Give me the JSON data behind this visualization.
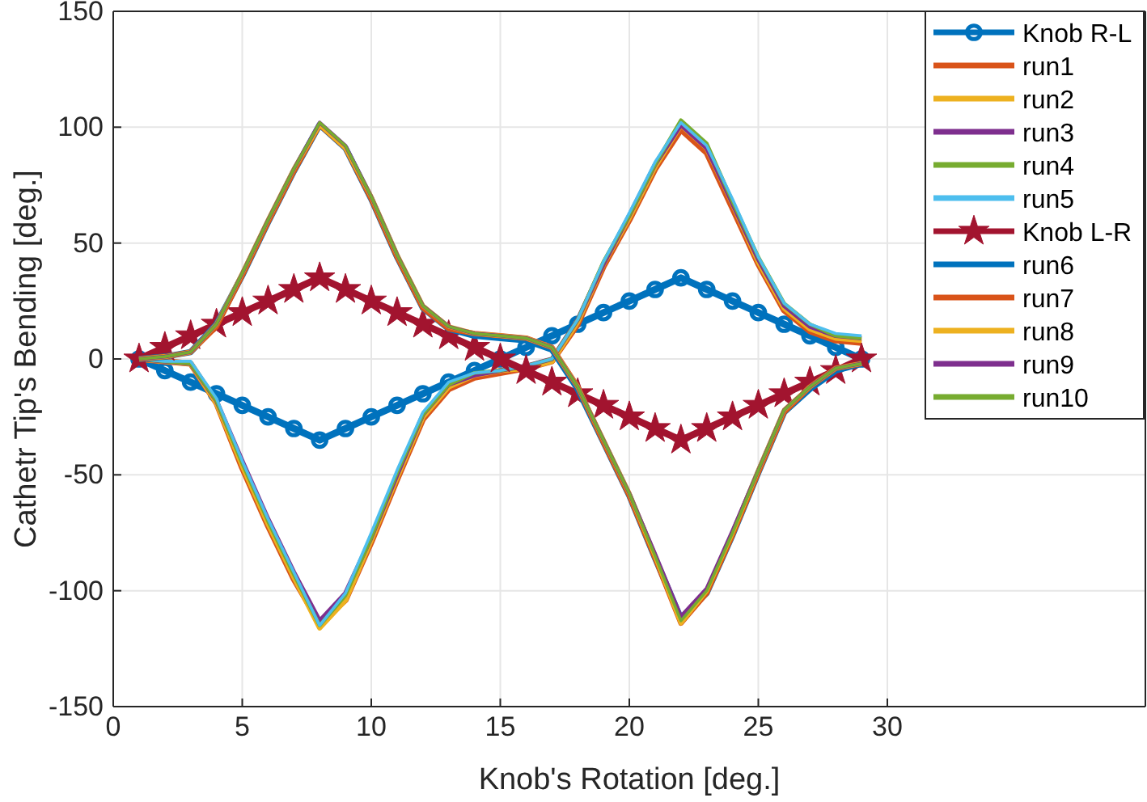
{
  "chart_data": {
    "type": "line",
    "xlabel": "Knob's Rotation [deg.]",
    "ylabel": "Cathetr Tip's Bending [deg.]",
    "x": [
      1,
      2,
      3,
      4,
      5,
      6,
      7,
      8,
      9,
      10,
      11,
      12,
      13,
      14,
      15,
      16,
      17,
      18,
      19,
      20,
      21,
      22,
      23,
      24,
      25,
      26,
      27,
      28,
      29
    ],
    "xlim": [
      0,
      40
    ],
    "xticks": [
      0,
      5,
      10,
      15,
      20,
      25,
      30
    ],
    "ylim": [
      -150,
      150
    ],
    "yticks": [
      -150,
      -100,
      -50,
      0,
      50,
      100,
      150
    ],
    "grid": true,
    "legend": "top right",
    "line_style": "solid",
    "series": [
      {
        "name": "Knob R-L",
        "color": "#0072bd",
        "marker": "circle",
        "values": [
          0,
          -5,
          -10,
          -15,
          -20,
          -25,
          -30,
          -35,
          -30,
          -25,
          -20,
          -15,
          -10,
          -5,
          0,
          5,
          10,
          15,
          20,
          25,
          30,
          35,
          30,
          25,
          20,
          15,
          10,
          5,
          0
        ]
      },
      {
        "name": "run1",
        "color": "#d95319",
        "marker": "none",
        "values": [
          0,
          -1,
          -2,
          -19,
          -47,
          -72,
          -95,
          -114,
          -104,
          -79,
          -52,
          -26,
          -13,
          -8,
          -6,
          -4,
          -1,
          15,
          40,
          60,
          82,
          99,
          89,
          65,
          41,
          21,
          12,
          8,
          7
        ]
      },
      {
        "name": "run2",
        "color": "#edb120",
        "marker": "none",
        "values": [
          0,
          -1,
          -2,
          -19,
          -46,
          -71,
          -94,
          -116,
          -104,
          -78,
          -51,
          -25,
          -12,
          -7,
          -5,
          -4,
          -1,
          16,
          41,
          61,
          83,
          101,
          91,
          67,
          42,
          22,
          13,
          9,
          8
        ]
      },
      {
        "name": "run3",
        "color": "#7e2f8e",
        "marker": "none",
        "values": [
          0,
          -1,
          -2,
          -18,
          -44,
          -69,
          -92,
          -113,
          -101,
          -77,
          -50,
          -24,
          -11,
          -7,
          -5,
          -3,
          0,
          17,
          41,
          62,
          84,
          101,
          91,
          67,
          43,
          23,
          14,
          10,
          9
        ]
      },
      {
        "name": "run4",
        "color": "#77ac30",
        "marker": "none",
        "values": [
          0,
          -1,
          -2,
          -18,
          -45,
          -70,
          -93,
          -115,
          -102,
          -77,
          -49,
          -24,
          -11,
          -6,
          -5,
          -3,
          0,
          17,
          42,
          62,
          84,
          103,
          93,
          68,
          44,
          24,
          15,
          10,
          9
        ]
      },
      {
        "name": "run5",
        "color": "#4dbeee",
        "marker": "none",
        "values": [
          0,
          -1,
          -1,
          -17,
          -44,
          -69,
          -92,
          -115,
          -101,
          -75,
          -48,
          -23,
          -10,
          -6,
          -5,
          -3,
          0,
          17,
          42,
          63,
          85,
          102,
          92,
          69,
          44,
          24,
          15,
          11,
          10
        ]
      },
      {
        "name": "Knob L-R",
        "color": "#a2142f",
        "marker": "star",
        "values": [
          0,
          5,
          10,
          15,
          20,
          25,
          30,
          35,
          30,
          25,
          20,
          15,
          10,
          5,
          0,
          -5,
          -10,
          -15,
          -20,
          -25,
          -30,
          -35,
          -30,
          -25,
          -20,
          -15,
          -10,
          -5,
          0
        ]
      },
      {
        "name": "run6",
        "color": "#0072bd",
        "marker": "none",
        "values": [
          0,
          1,
          3,
          15,
          36,
          59,
          81,
          101,
          91,
          69,
          44,
          22,
          13,
          10,
          9,
          8,
          4,
          -13,
          -36,
          -59,
          -86,
          -112,
          -101,
          -76,
          -49,
          -23,
          -13,
          -5,
          -2
        ]
      },
      {
        "name": "run7",
        "color": "#d95319",
        "marker": "none",
        "values": [
          0,
          1,
          3,
          14,
          36,
          59,
          81,
          101,
          91,
          69,
          44,
          22,
          13,
          11,
          10,
          9,
          5,
          -12,
          -36,
          -59,
          -86,
          -114,
          -101,
          -76,
          -49,
          -23,
          -12,
          -4,
          -2
        ]
      },
      {
        "name": "run8",
        "color": "#edb120",
        "marker": "none",
        "values": [
          0,
          1,
          3,
          15,
          37,
          60,
          82,
          101,
          91,
          70,
          45,
          23,
          14,
          11,
          10,
          9,
          5,
          -12,
          -35,
          -58,
          -85,
          -114,
          -100,
          -75,
          -48,
          -22,
          -12,
          -4,
          -2
        ]
      },
      {
        "name": "run9",
        "color": "#7e2f8e",
        "marker": "none",
        "values": [
          0,
          1,
          3,
          15,
          37,
          60,
          82,
          102,
          92,
          70,
          45,
          23,
          14,
          11,
          10,
          9,
          5,
          -12,
          -35,
          -58,
          -84,
          -111,
          -99,
          -74,
          -48,
          -22,
          -12,
          -4,
          -2
        ]
      },
      {
        "name": "run10",
        "color": "#77ac30",
        "marker": "none",
        "values": [
          0,
          1,
          3,
          15,
          37,
          60,
          82,
          102,
          92,
          70,
          45,
          23,
          14,
          11,
          10,
          9,
          5,
          -12,
          -35,
          -58,
          -85,
          -113,
          -100,
          -75,
          -48,
          -22,
          -12,
          -4,
          -2
        ]
      }
    ]
  }
}
